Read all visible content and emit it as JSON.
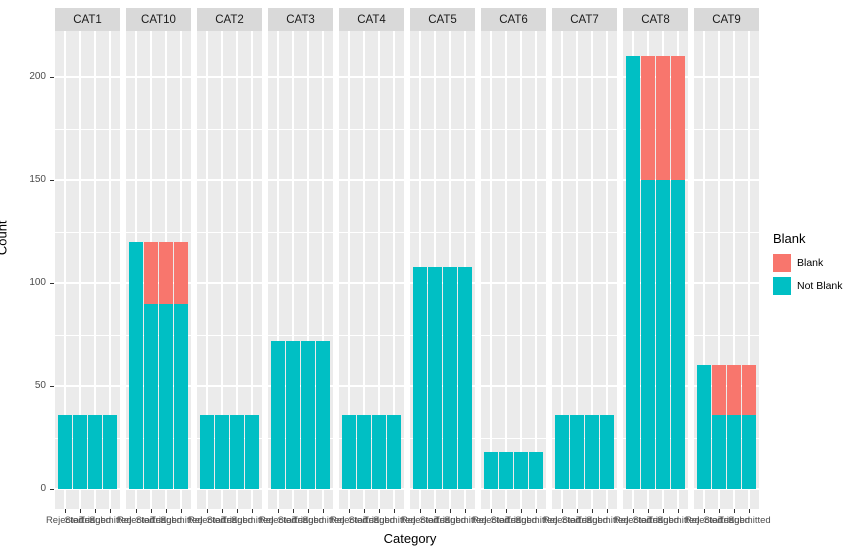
{
  "axes": {
    "x_label": "Category",
    "y_label": "Count"
  },
  "legend": {
    "title": "Blank",
    "items": [
      {
        "label": "Blank",
        "color": "#F8766D"
      },
      {
        "label": "Not Blank",
        "color": "#00BFC4"
      }
    ]
  },
  "colors": {
    "blank": "#F8766D",
    "not_blank": "#00BFC4",
    "panel_background": "#EBEBEB",
    "strip_background": "#D9D9D9",
    "gridline": "#FFFFFF"
  },
  "chart_data": {
    "type": "bar",
    "stacked": true,
    "xlabel": "Category",
    "ylabel": "Count",
    "ylim": [
      0,
      220
    ],
    "grid": true,
    "y_major_ticks": [
      0,
      50,
      100,
      150,
      200
    ],
    "y_minor_ticks": [
      25,
      75,
      125,
      175
    ],
    "bar_categories": [
      "Rejected",
      "Started",
      "Triaged",
      "Submitted"
    ],
    "series_names": [
      "Not Blank",
      "Blank"
    ],
    "legend_position": "right",
    "facets": [
      {
        "name": "CAT1",
        "not_blank": [
          36,
          36,
          36,
          36
        ],
        "blank": [
          0,
          0,
          0,
          0
        ]
      },
      {
        "name": "CAT10",
        "not_blank": [
          120,
          90,
          90,
          90
        ],
        "blank": [
          0,
          30,
          30,
          30
        ]
      },
      {
        "name": "CAT2",
        "not_blank": [
          36,
          36,
          36,
          36
        ],
        "blank": [
          0,
          0,
          0,
          0
        ]
      },
      {
        "name": "CAT3",
        "not_blank": [
          72,
          72,
          72,
          72
        ],
        "blank": [
          0,
          0,
          0,
          0
        ]
      },
      {
        "name": "CAT4",
        "not_blank": [
          36,
          36,
          36,
          36
        ],
        "blank": [
          0,
          0,
          0,
          0
        ]
      },
      {
        "name": "CAT5",
        "not_blank": [
          108,
          108,
          108,
          108
        ],
        "blank": [
          0,
          0,
          0,
          0
        ]
      },
      {
        "name": "CAT6",
        "not_blank": [
          18,
          18,
          18,
          18
        ],
        "blank": [
          0,
          0,
          0,
          0
        ]
      },
      {
        "name": "CAT7",
        "not_blank": [
          36,
          36,
          36,
          36
        ],
        "blank": [
          0,
          0,
          0,
          0
        ]
      },
      {
        "name": "CAT8",
        "not_blank": [
          210,
          150,
          150,
          150
        ],
        "blank": [
          0,
          60,
          60,
          60
        ]
      },
      {
        "name": "CAT9",
        "not_blank": [
          60,
          36,
          36,
          36
        ],
        "blank": [
          0,
          24,
          24,
          24
        ]
      }
    ]
  }
}
